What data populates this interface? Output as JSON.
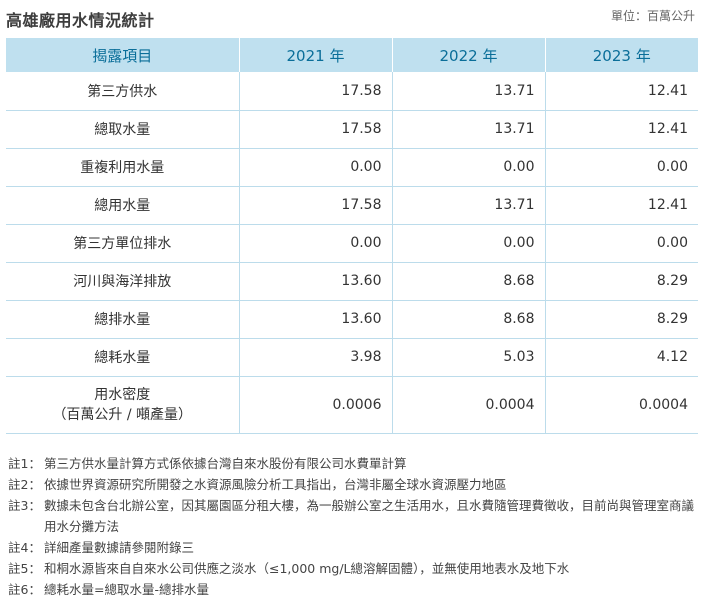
{
  "title": "高雄廠用水情況統計",
  "unit": "單位：百萬公升",
  "table": {
    "headers": [
      "揭露項目",
      "2021 年",
      "2022 年",
      "2023 年"
    ],
    "rows": [
      {
        "label": "第三方供水",
        "values": [
          "17.58",
          "13.71",
          "12.41"
        ]
      },
      {
        "label": "總取水量",
        "values": [
          "17.58",
          "13.71",
          "12.41"
        ]
      },
      {
        "label": "重複利用水量",
        "values": [
          "0.00",
          "0.00",
          "0.00"
        ]
      },
      {
        "label": "總用水量",
        "values": [
          "17.58",
          "13.71",
          "12.41"
        ]
      },
      {
        "label": "第三方單位排水",
        "values": [
          "0.00",
          "0.00",
          "0.00"
        ]
      },
      {
        "label": "河川與海洋排放",
        "values": [
          "13.60",
          "8.68",
          "8.29"
        ]
      },
      {
        "label": "總排水量",
        "values": [
          "13.60",
          "8.68",
          "8.29"
        ]
      },
      {
        "label": "總耗水量",
        "values": [
          "3.98",
          "5.03",
          "4.12"
        ]
      },
      {
        "label": "用水密度",
        "label2": "（百萬公升 / 噸產量）",
        "values": [
          "0.0006",
          "0.0004",
          "0.0004"
        ]
      }
    ]
  },
  "notes": [
    {
      "key": "註1：",
      "text": "第三方供水量計算方式係依據台灣自來水股份有限公司水費單計算"
    },
    {
      "key": "註2：",
      "text": "依據世界資源研究所開發之水資源風險分析工具指出，台灣非屬全球水資源壓力地區"
    },
    {
      "key": "註3：",
      "text": "數據未包含台北辦公室，因其屬園區分租大樓，為一般辦公室之生活用水，且水費隨管理費徵收，目前尚與管理室商議用水分攤方法"
    },
    {
      "key": "註4：",
      "text": "詳細產量數據請參閱附錄三"
    },
    {
      "key": "註5：",
      "text": "和桐水源皆來自自來水公司供應之淡水（≤1,000 mg/L總溶解固體），並無使用地表水及地下水"
    },
    {
      "key": "註6：",
      "text": "總耗水量=總取水量-總排水量"
    }
  ]
}
